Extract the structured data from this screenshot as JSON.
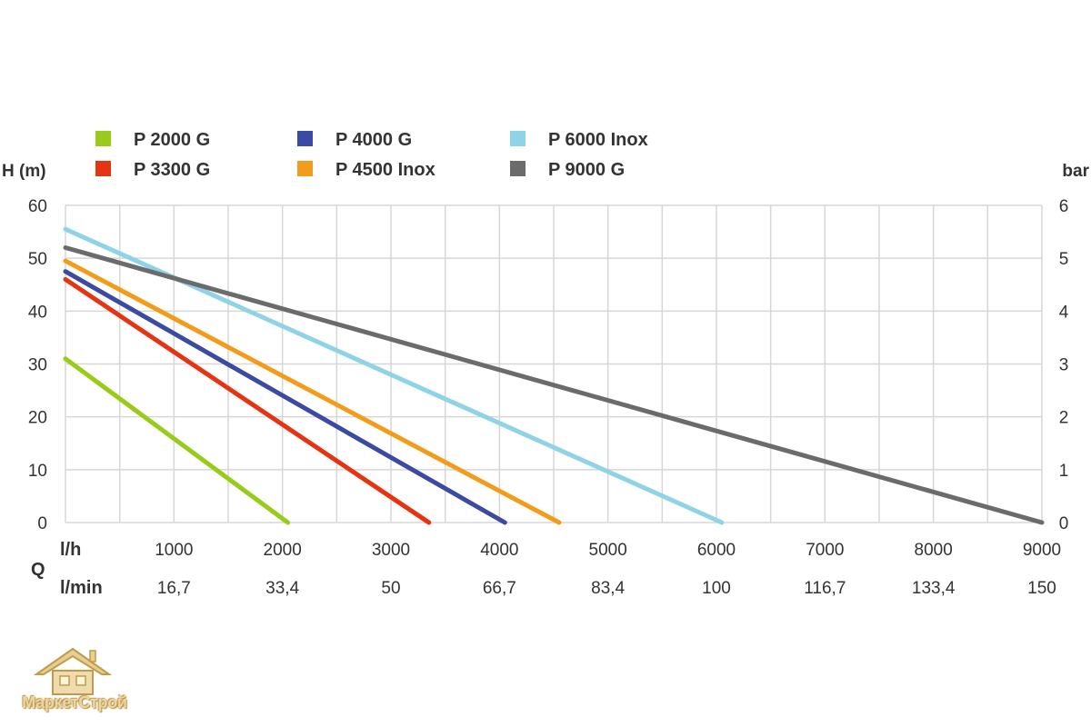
{
  "chart_data": {
    "type": "line",
    "ylabel": "H (m)",
    "y2label": "bar",
    "ylim": [
      0,
      60
    ],
    "y2lim": [
      0,
      6
    ],
    "xlim": [
      0,
      9000
    ],
    "yticks": [
      "0",
      "10",
      "20",
      "30",
      "40",
      "50",
      "60"
    ],
    "y2ticks": [
      "0",
      "1",
      "2",
      "3",
      "4",
      "5",
      "6"
    ],
    "x_row_label": "l/h",
    "x_ticks_lh": [
      "1000",
      "2000",
      "3000",
      "4000",
      "5000",
      "6000",
      "7000",
      "8000",
      "9000"
    ],
    "x2_row_label": "l/min",
    "x_ticks_lmin": [
      "16,7",
      "33,4",
      "50",
      "66,7",
      "83,4",
      "100",
      "116,7",
      "133,4",
      "150"
    ],
    "q_label": "Q",
    "grid": true,
    "legend_position": "top",
    "series": [
      {
        "name": "P 2000 G",
        "color": "#99cc1a",
        "x": [
          0,
          2050
        ],
        "y": [
          31,
          0
        ]
      },
      {
        "name": "P 3300 G",
        "color": "#e63312",
        "x": [
          0,
          3350
        ],
        "y": [
          46,
          0
        ]
      },
      {
        "name": "P 4000 G",
        "color": "#3b4aa3",
        "x": [
          0,
          4050
        ],
        "y": [
          47.5,
          0
        ]
      },
      {
        "name": "P 4500 Inox",
        "color": "#f39c1c",
        "x": [
          0,
          4550
        ],
        "y": [
          49.5,
          0
        ]
      },
      {
        "name": "P 6000 Inox",
        "color": "#8fd3e6",
        "x": [
          0,
          6050
        ],
        "y": [
          55.5,
          0
        ]
      },
      {
        "name": "P 9000 G",
        "color": "#6b6b6b",
        "x": [
          0,
          9000
        ],
        "y": [
          52,
          0
        ]
      }
    ]
  },
  "watermark": {
    "text": "МаркетСтрой",
    "icon": "house-icon"
  }
}
